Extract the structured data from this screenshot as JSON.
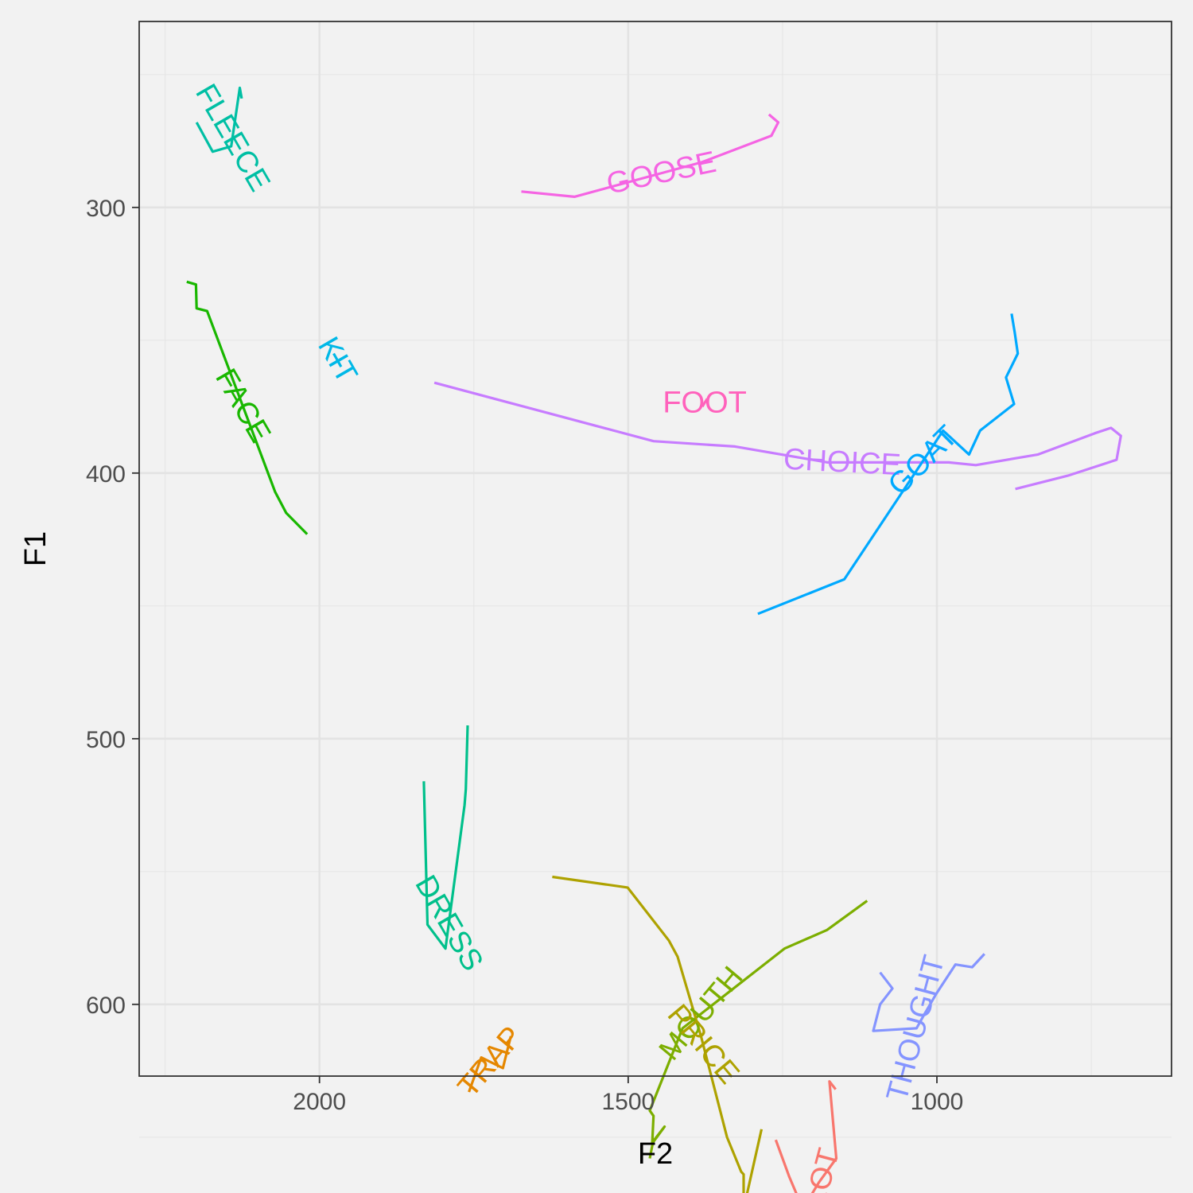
{
  "chart_data": {
    "type": "line",
    "title": "",
    "xlabel": "F2",
    "ylabel": "F1",
    "x_reversed": true,
    "y_reversed": true,
    "xlim": [
      2292,
      620
    ],
    "ylim": [
      230,
      627
    ],
    "x_major_ticks": [
      2000,
      1500,
      1000
    ],
    "x_tick_labels": [
      "2000",
      "1500",
      "1000"
    ],
    "x_minor_ticks": [
      2250,
      1750,
      1250,
      750
    ],
    "y_major_ticks": [
      300,
      400,
      500,
      600
    ],
    "y_tick_labels": [
      "300",
      "400",
      "500",
      "600"
    ],
    "y_minor_ticks": [
      250,
      350,
      450,
      550,
      650
    ],
    "grid": true,
    "legend": "none",
    "series": [
      {
        "name": "GOOSE",
        "color": "#F564E3",
        "label_angle": -12,
        "points": [
          [
            1673,
            294
          ],
          [
            1587,
            296
          ],
          [
            1381,
            283
          ],
          [
            1268,
            273
          ],
          [
            1257,
            268
          ],
          [
            1272,
            265
          ]
        ]
      },
      {
        "name": "FLEECE",
        "color": "#00BFA4",
        "label_angle": 60,
        "points": [
          [
            2199,
            268
          ],
          [
            2173,
            279
          ],
          [
            2143,
            277
          ],
          [
            2129,
            255
          ],
          [
            2126,
            259
          ]
        ]
      },
      {
        "name": "FACE",
        "color": "#19B700",
        "label_angle": 60,
        "points": [
          [
            2215,
            328
          ],
          [
            2200,
            329
          ],
          [
            2199,
            338
          ],
          [
            2182,
            339
          ],
          [
            2072,
            407
          ],
          [
            2054,
            415
          ],
          [
            2020,
            423
          ]
        ]
      },
      {
        "name": "KIT",
        "color": "#00B8E7",
        "label_angle": 60,
        "points": [
          [
            1977,
            355
          ],
          [
            1965,
            360
          ]
        ]
      },
      {
        "name": "FOOT",
        "color": "#FF62BC",
        "label_angle": 0,
        "points": [
          [
            1380,
            375
          ],
          [
            1372,
            372
          ]
        ]
      },
      {
        "name": "CHOICE",
        "color": "#C77CFF",
        "label_angle": 3,
        "points": [
          [
            1814,
            366
          ],
          [
            1459,
            388
          ],
          [
            1327,
            390
          ],
          [
            1177,
            396
          ],
          [
            1148,
            396
          ],
          [
            981,
            396
          ],
          [
            937,
            397
          ],
          [
            836,
            393
          ],
          [
            744,
            385
          ],
          [
            718,
            383
          ],
          [
            702,
            386
          ],
          [
            709,
            395
          ],
          [
            788,
            401
          ],
          [
            873,
            406
          ]
        ]
      },
      {
        "name": "GOAT",
        "color": "#00A9FF",
        "label_angle": -45,
        "points": [
          [
            1290,
            453
          ],
          [
            1150,
            440
          ],
          [
            990,
            384
          ],
          [
            948,
            393
          ],
          [
            930,
            384
          ],
          [
            875,
            374
          ],
          [
            888,
            364
          ],
          [
            869,
            355
          ],
          [
            874,
            347
          ],
          [
            879,
            340
          ]
        ]
      },
      {
        "name": "DRESS",
        "color": "#00C08B",
        "label_angle": 60,
        "points": [
          [
            1831,
            516
          ],
          [
            1825,
            570
          ],
          [
            1796,
            579
          ],
          [
            1765,
            525
          ],
          [
            1763,
            519
          ],
          [
            1760,
            495
          ]
        ]
      },
      {
        "name": "MOUTH",
        "color": "#7CAE00",
        "label_angle": -50,
        "points": [
          [
            1465,
            658
          ],
          [
            1460,
            652
          ],
          [
            1441,
            646
          ],
          [
            1461,
            652
          ],
          [
            1459,
            642
          ],
          [
            1465,
            640
          ],
          [
            1412,
            609
          ],
          [
            1247,
            579
          ],
          [
            1178,
            572
          ],
          [
            1113,
            561
          ]
        ]
      },
      {
        "name": "PRICE",
        "color": "#AEA200",
        "label_angle": 50,
        "points": [
          [
            1623,
            552
          ],
          [
            1501,
            556
          ],
          [
            1434,
            576
          ],
          [
            1420,
            582
          ],
          [
            1382,
            612
          ],
          [
            1340,
            650
          ],
          [
            1317,
            663
          ],
          [
            1313,
            664
          ],
          [
            1313,
            677
          ],
          [
            1284,
            647
          ]
        ]
      },
      {
        "name": "TRAP",
        "color": "#E58700",
        "label_angle": -50,
        "points": [
          [
            1758,
            633
          ],
          [
            1738,
            620
          ],
          [
            1703,
            624
          ],
          [
            1690,
            612
          ]
        ]
      },
      {
        "name": "LOT",
        "color": "#F8766D",
        "label_angle": -75,
        "points": [
          [
            1261,
            651
          ],
          [
            1239,
            665
          ],
          [
            1217,
            677
          ],
          [
            1191,
            667
          ],
          [
            1163,
            658
          ],
          [
            1174,
            629
          ],
          [
            1164,
            632
          ]
        ]
      },
      {
        "name": "THOUGHT",
        "color": "#8494FF",
        "label_angle": -75,
        "points": [
          [
            1092,
            588
          ],
          [
            1072,
            594
          ],
          [
            1092,
            600
          ],
          [
            1103,
            610
          ],
          [
            1033,
            609
          ],
          [
            1021,
            604
          ],
          [
            1001,
            596
          ],
          [
            970,
            585
          ],
          [
            943,
            586
          ],
          [
            923,
            581
          ]
        ]
      }
    ]
  }
}
